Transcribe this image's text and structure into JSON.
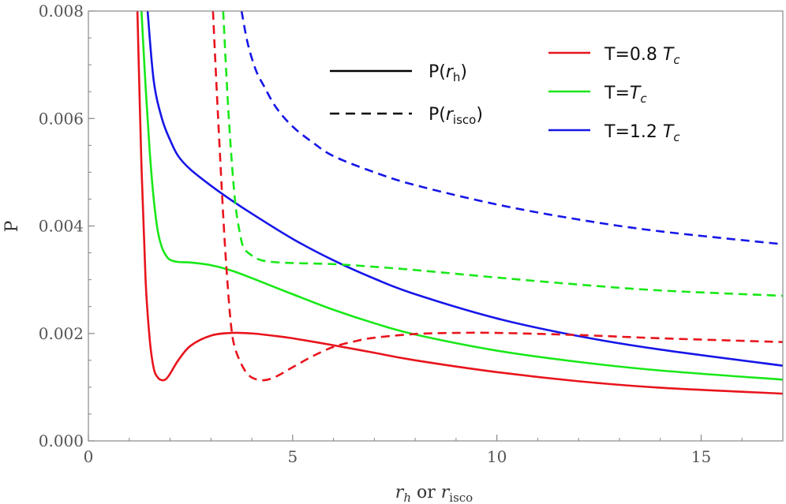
{
  "chart_data": {
    "type": "line",
    "title": "",
    "xlabel": {
      "main": "r",
      "main_sub": "h",
      "connector": " or ",
      "second": "r",
      "second_sub": "isco"
    },
    "ylabel": "P",
    "xlim": [
      0,
      17
    ],
    "ylim": [
      0,
      0.008
    ],
    "x_ticks": [
      0,
      5,
      10,
      15
    ],
    "x_tick_labels": [
      "0",
      "5",
      "10",
      "15"
    ],
    "y_ticks": [
      0,
      0.002,
      0.004,
      0.006,
      0.008
    ],
    "y_tick_labels": [
      "0.000",
      "0.002",
      "0.004",
      "0.006",
      "0.008"
    ],
    "grid": false,
    "series": [
      {
        "name": "P(r_h), T=0.8 Tc",
        "color": "#e8141c",
        "style": "solid",
        "x": [
          1.2,
          1.3,
          1.4,
          1.5,
          1.6,
          1.7,
          1.8,
          1.9,
          2.0,
          2.2,
          2.5,
          3.0,
          3.5,
          4.0,
          4.5,
          5.0,
          6.0,
          7.0,
          8.0,
          10.0,
          12.0,
          14.0,
          17.0
        ],
        "y": [
          0.008,
          0.0051,
          0.003,
          0.0019,
          0.00135,
          0.00118,
          0.00113,
          0.00115,
          0.00125,
          0.0015,
          0.00177,
          0.00196,
          0.00201,
          0.002,
          0.00196,
          0.00191,
          0.00178,
          0.00164,
          0.0015,
          0.00128,
          0.00111,
          0.00099,
          0.00088
        ]
      },
      {
        "name": "P(r_h), T=Tc",
        "color": "#18e818",
        "style": "solid",
        "x": [
          1.3,
          1.4,
          1.5,
          1.6,
          1.7,
          1.8,
          1.9,
          2.0,
          2.2,
          2.5,
          3.0,
          3.5,
          4.0,
          5.0,
          6.0,
          7.0,
          8.0,
          10.0,
          12.0,
          14.0,
          17.0
        ],
        "y": [
          0.008,
          0.0066,
          0.0054,
          0.0045,
          0.0039,
          0.0036,
          0.00345,
          0.00337,
          0.00333,
          0.00332,
          0.00327,
          0.00317,
          0.00303,
          0.00273,
          0.00244,
          0.00219,
          0.00198,
          0.00168,
          0.00147,
          0.00131,
          0.00114
        ]
      },
      {
        "name": "P(r_h), T=1.2 Tc",
        "color": "#1616e8",
        "style": "solid",
        "x": [
          1.45,
          1.6,
          1.8,
          2.0,
          2.2,
          2.5,
          3.0,
          3.5,
          4.0,
          5.0,
          6.0,
          7.0,
          8.0,
          10.0,
          12.0,
          14.0,
          17.0
        ],
        "y": [
          0.008,
          0.0067,
          0.006,
          0.0056,
          0.0053,
          0.00505,
          0.00475,
          0.00448,
          0.00423,
          0.00376,
          0.00336,
          0.00302,
          0.00273,
          0.00228,
          0.00195,
          0.0017,
          0.0014
        ]
      },
      {
        "name": "P(r_isco), T=0.8 Tc",
        "color": "#e8141c",
        "style": "dashed",
        "x": [
          3.05,
          3.15,
          3.3,
          3.4,
          3.5,
          3.6,
          3.8,
          4.0,
          4.3,
          4.6,
          5.0,
          5.5,
          6.0,
          6.5,
          7.0,
          8.0,
          9.0,
          10.0,
          12.0,
          14.0,
          17.0
        ],
        "y": [
          0.008,
          0.0064,
          0.0042,
          0.003,
          0.0021,
          0.0017,
          0.00135,
          0.00118,
          0.00113,
          0.0012,
          0.00137,
          0.00158,
          0.00175,
          0.00185,
          0.00192,
          0.00199,
          0.00201,
          0.00201,
          0.00197,
          0.00191,
          0.00184
        ]
      },
      {
        "name": "P(r_isco), T=Tc",
        "color": "#18e818",
        "style": "dashed",
        "x": [
          3.3,
          3.4,
          3.5,
          3.6,
          3.7,
          3.8,
          4.0,
          4.2,
          4.5,
          5.0,
          6.0,
          7.0,
          8.0,
          10.0,
          12.0,
          14.0,
          17.0
        ],
        "y": [
          0.008,
          0.0065,
          0.0053,
          0.0044,
          0.0039,
          0.0036,
          0.00345,
          0.00337,
          0.00333,
          0.00331,
          0.00329,
          0.00324,
          0.00318,
          0.00304,
          0.00291,
          0.0028,
          0.0027
        ]
      },
      {
        "name": "P(r_isco), T=1.2 Tc",
        "color": "#1616e8",
        "style": "dashed",
        "x": [
          3.75,
          3.9,
          4.1,
          4.3,
          4.6,
          5.0,
          5.5,
          6.0,
          7.0,
          8.0,
          10.0,
          12.0,
          14.0,
          17.0
        ],
        "y": [
          0.008,
          0.0074,
          0.0069,
          0.0066,
          0.0062,
          0.00585,
          0.00555,
          0.0053,
          0.005,
          0.00476,
          0.0044,
          0.00412,
          0.0039,
          0.00366
        ]
      }
    ],
    "legend_style": [
      {
        "label": "P(",
        "var": "r",
        "sub": "h",
        "close": ")",
        "style": "solid"
      },
      {
        "label": "P(",
        "var": "r",
        "sub": "isco",
        "close": ")",
        "style": "dashed"
      }
    ],
    "legend_temp": [
      {
        "prefix": "T=0.8 ",
        "var": "T",
        "sub": "c",
        "color": "#e8141c"
      },
      {
        "prefix": "T=",
        "var": "T",
        "sub": "c",
        "color": "#18e818"
      },
      {
        "prefix": "T=1.2 ",
        "var": "T",
        "sub": "c",
        "color": "#1616e8"
      }
    ]
  }
}
